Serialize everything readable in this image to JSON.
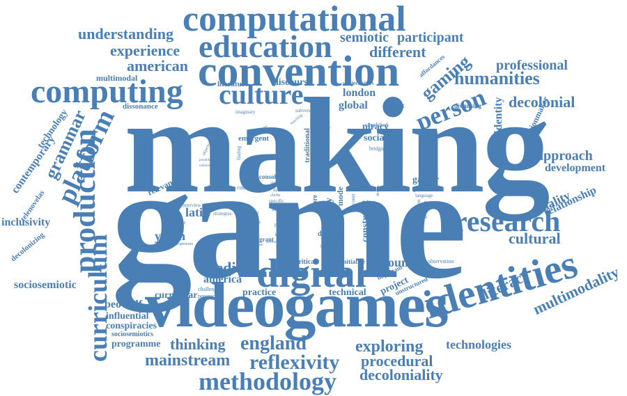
{
  "words": {
    "making": "making",
    "game": "game",
    "videogames": "videogames",
    "convention": "convention",
    "computational": "computational",
    "digital": "digital",
    "identities": "identities",
    "computing": "computing",
    "education": "education",
    "culture": "culture",
    "production": "production",
    "curriculum": "curriculum",
    "research": "research",
    "methodology": "methodology",
    "person": "person",
    "reflexivity": "reflexivity",
    "england": "england",
    "platform": "platform",
    "humanities": "humanities",
    "gaming": "gaming",
    "exploring": "exploring",
    "procedural": "procedural",
    "decoloniality": "decoloniality",
    "mainstream": "mainstream",
    "thinking": "thinking",
    "technologies": "technologies",
    "cultural": "cultural",
    "literacy": "literacy",
    "multimodality": "multimodality",
    "grammar": "grammar",
    "understanding": "understanding",
    "experience": "experience",
    "american": "american",
    "different": "different",
    "participant": "participant",
    "semiotic": "semiotic",
    "professional": "professional",
    "decolonial": "decolonial",
    "approach": "approach",
    "development": "development",
    "relationship": "relationship",
    "modality": "modality",
    "media": "media",
    "young": "young",
    "context": "context",
    "america": "america",
    "practice": "practice",
    "technical": "technical",
    "curricular": "curricular",
    "beowulf": "beowulf",
    "influential": "influential",
    "conspiracies": "conspiracies",
    "sociosemiotics": "sociosemiotics",
    "programme": "programme",
    "sociosemiotic": "sociosemiotic",
    "inclusivity": "inclusivity",
    "contemporary": "contemporary",
    "technology": "technology",
    "telenovelas": "telenovelas",
    "decolonizing": "decolonizing",
    "youth": "youth",
    "latin": "latin",
    "relevant": "relevant",
    "london": "london",
    "global": "global",
    "piracy": "piracy",
    "social": "social",
    "discourse": "discourse",
    "literature": "literature",
    "multimodal": "multimodal",
    "dissonance": "dissonance",
    "identity": "identity",
    "missionmaker": "missionmaker",
    "gamer": "gamer",
    "preference": "preference",
    "knowledge": "knowledge",
    "constraint": "constraint",
    "project": "project",
    "important": "important",
    "unstructured": "unstructured",
    "critical": "critical",
    "initiative": "initiative",
    "observation": "observation",
    "affordances": "affordances",
    "subjectivities": "subjectivities",
    "present": "present",
    "discussing": "discussing",
    "emergent": "emergent",
    "traditional": "traditional",
    "reflection": "reflection",
    "simplified": "simplified",
    "bridging": "bridging",
    "console": "console",
    "school": "school",
    "student": "student",
    "history": "history",
    "mode": "mode",
    "more": "more",
    "diverse": "diverse",
    "migrant": "migrant",
    "hegemonic": "hegemonic",
    "challenging": "challenging",
    "perspective": "perspective",
    "creative": "creative",
    "playing": "playing",
    "imaginary": "imaginary",
    "subversive": "subversive",
    "study": "study",
    "data": "data",
    "countrie": "countrie",
    "interview": "interview",
    "repertoire": "repertoire",
    "strategies": "strategies",
    "discusses": "discusses",
    "partial": "partial",
    "limitation": "limitation",
    "artefact": "artefact",
    "account": "account",
    "design": "design",
    "perception": "perception",
    "generation": "generation",
    "language": "language",
    "finding": "finding",
    "objective": "objective",
    "possible": "possible",
    "national": "national",
    "challenge": "challenge",
    "building": "building",
    "teaching": "teaching",
    "cliche": "cliche",
    "element": "element",
    "software": "software",
    "deliver": "deliver",
    "model": "model",
    "specific": "specific"
  },
  "colors": {
    "word": "#4a7fb5",
    "background": "#ffffff"
  }
}
